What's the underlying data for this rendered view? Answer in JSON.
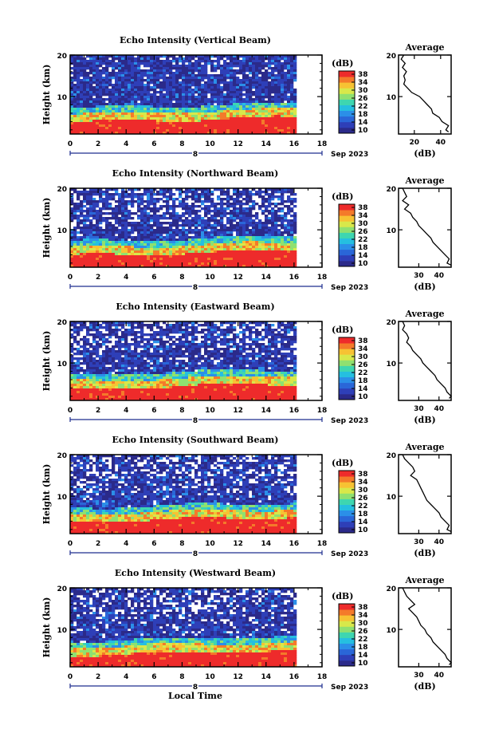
{
  "chart_data": [
    {
      "type": "heatmap",
      "title": "Echo Intensity (Vertical Beam)",
      "ylabel": "Height (km)",
      "colorbar_label": "(dB)",
      "colorbar_ticks": [
        "38",
        "34",
        "30",
        "26",
        "22",
        "18",
        "14",
        "10"
      ],
      "x_ticks": [
        "0",
        "2",
        "4",
        "6",
        "8",
        "10",
        "12",
        "14",
        "16",
        "18"
      ],
      "y_ticks": [
        "20",
        "10"
      ],
      "date_day": "8",
      "date_suffix": "Sep 2023",
      "xlim": [
        0,
        18
      ],
      "ylim": [
        1,
        20
      ],
      "data_end_hour": 16,
      "profile": {
        "title": "Average",
        "xlabel": "(dB)",
        "x_ticks": [
          "20",
          "40"
        ],
        "xlim": [
          8,
          48
        ],
        "y_ticks": [
          "20",
          "10"
        ],
        "heights": [
          20,
          19,
          18,
          17,
          16,
          15,
          14,
          13,
          12,
          11,
          10,
          9,
          8,
          7,
          6,
          5,
          4,
          3,
          2,
          1.5
        ],
        "values": [
          12,
          10,
          13,
          11,
          14,
          12,
          13,
          12,
          15,
          18,
          24,
          27,
          30,
          33,
          34,
          39,
          41,
          46,
          44,
          46
        ]
      }
    },
    {
      "type": "heatmap",
      "title": "Echo Intensity (Northward Beam)",
      "ylabel": "Height (km)",
      "colorbar_label": "(dB)",
      "colorbar_ticks": [
        "38",
        "34",
        "30",
        "26",
        "22",
        "18",
        "14",
        "10"
      ],
      "x_ticks": [
        "0",
        "2",
        "4",
        "6",
        "8",
        "10",
        "12",
        "14",
        "16",
        "18"
      ],
      "y_ticks": [
        "20",
        "10"
      ],
      "date_day": "8",
      "date_suffix": "Sep 2023",
      "xlim": [
        0,
        18
      ],
      "ylim": [
        1,
        20
      ],
      "data_end_hour": 16,
      "profile": {
        "title": "Average",
        "xlabel": "(dB)",
        "x_ticks": [
          "30",
          "40"
        ],
        "xlim": [
          20,
          46
        ],
        "y_ticks": [
          "20",
          "10"
        ],
        "heights": [
          20,
          19,
          18,
          17,
          16,
          15,
          14,
          13,
          12,
          11,
          10,
          9,
          8,
          7,
          6,
          5,
          4,
          3,
          2,
          1.5
        ],
        "values": [
          22,
          23,
          24,
          22,
          25,
          23,
          26,
          27,
          29,
          30,
          32,
          34,
          36,
          37,
          39,
          41,
          43,
          45,
          44,
          46
        ]
      }
    },
    {
      "type": "heatmap",
      "title": "Echo Intensity (Eastward Beam)",
      "ylabel": "Height (km)",
      "colorbar_label": "(dB)",
      "colorbar_ticks": [
        "38",
        "34",
        "30",
        "26",
        "22",
        "18",
        "14",
        "10"
      ],
      "x_ticks": [
        "0",
        "2",
        "4",
        "6",
        "8",
        "10",
        "12",
        "14",
        "16",
        "18"
      ],
      "y_ticks": [
        "20",
        "10"
      ],
      "date_day": "8",
      "date_suffix": "Sep 2023",
      "xlim": [
        0,
        18
      ],
      "ylim": [
        1,
        20
      ],
      "data_end_hour": 16,
      "profile": {
        "title": "Average",
        "xlabel": "(dB)",
        "x_ticks": [
          "30",
          "40"
        ],
        "xlim": [
          20,
          46
        ],
        "y_ticks": [
          "20",
          "10"
        ],
        "heights": [
          20,
          19,
          18,
          17,
          16,
          15,
          14,
          13,
          12,
          11,
          10,
          9,
          8,
          7,
          6,
          5,
          4,
          3,
          2,
          1.5
        ],
        "values": [
          22,
          23,
          22,
          24,
          25,
          24,
          26,
          27,
          29,
          31,
          32,
          34,
          36,
          38,
          39,
          41,
          43,
          44,
          46,
          45
        ]
      }
    },
    {
      "type": "heatmap",
      "title": "Echo Intensity (Southward Beam)",
      "ylabel": "Height (km)",
      "colorbar_label": "(dB)",
      "colorbar_ticks": [
        "38",
        "34",
        "30",
        "26",
        "22",
        "18",
        "14",
        "10"
      ],
      "x_ticks": [
        "0",
        "2",
        "4",
        "6",
        "8",
        "10",
        "12",
        "14",
        "16",
        "18"
      ],
      "y_ticks": [
        "20",
        "10"
      ],
      "date_day": "8",
      "date_suffix": "Sep 2023",
      "xlim": [
        0,
        18
      ],
      "ylim": [
        1,
        20
      ],
      "data_end_hour": 16,
      "profile": {
        "title": "Average",
        "xlabel": "(dB)",
        "x_ticks": [
          "30",
          "40"
        ],
        "xlim": [
          20,
          46
        ],
        "y_ticks": [
          "20",
          "10"
        ],
        "heights": [
          20,
          19,
          18,
          17,
          16,
          15,
          14,
          13,
          12,
          11,
          10,
          9,
          8,
          7,
          6,
          5,
          4,
          3,
          2,
          1.5
        ],
        "values": [
          22,
          23,
          25,
          27,
          28,
          26,
          29,
          30,
          31,
          32,
          33,
          34,
          36,
          38,
          40,
          41,
          43,
          45,
          44,
          46
        ]
      }
    },
    {
      "type": "heatmap",
      "title": "Echo Intensity (Westward Beam)",
      "ylabel": "Height (km)",
      "colorbar_label": "(dB)",
      "colorbar_ticks": [
        "38",
        "34",
        "30",
        "26",
        "22",
        "18",
        "14",
        "10"
      ],
      "x_ticks": [
        "0",
        "2",
        "4",
        "6",
        "8",
        "10",
        "12",
        "14",
        "16",
        "18"
      ],
      "y_ticks": [
        "20",
        "10"
      ],
      "date_day": "8",
      "date_suffix": "Sep 2023",
      "xlabel": "Local Time",
      "xlim": [
        0,
        18
      ],
      "ylim": [
        1,
        20
      ],
      "data_end_hour": 16,
      "profile": {
        "title": "Average",
        "xlabel": "(dB)",
        "x_ticks": [
          "30",
          "40"
        ],
        "xlim": [
          20,
          46
        ],
        "y_ticks": [
          "20",
          "10"
        ],
        "heights": [
          20,
          19,
          18,
          17,
          16,
          15,
          14,
          13,
          12,
          11,
          10,
          9,
          8,
          7,
          6,
          5,
          4,
          3,
          2,
          1.5
        ],
        "values": [
          22,
          23,
          24,
          26,
          28,
          25,
          27,
          29,
          30,
          31,
          33,
          34,
          36,
          37,
          39,
          41,
          43,
          44,
          46,
          45
        ]
      }
    }
  ],
  "colors": {
    "colormap": [
      "#2b2a8a",
      "#2e3fb8",
      "#2a66d8",
      "#2b8fe8",
      "#25bfe0",
      "#3ed6b0",
      "#8fe070",
      "#d8e84a",
      "#f7c233",
      "#f47a2a",
      "#ee2b2b"
    ],
    "no_data": "#ffffff",
    "axis": "#000000"
  }
}
